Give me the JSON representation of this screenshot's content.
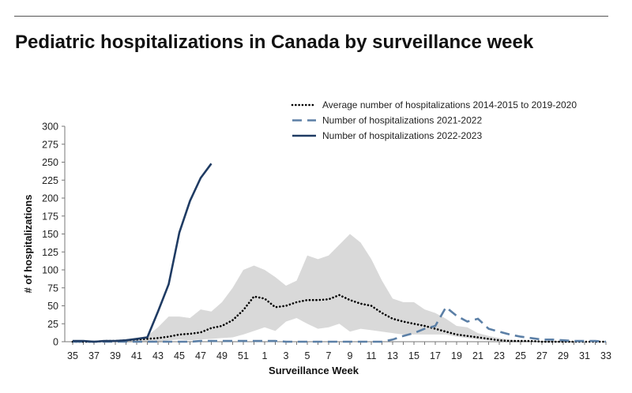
{
  "page": {
    "title": "Pediatric hospitalizations in Canada by surveillance week"
  },
  "chart_data": {
    "type": "line",
    "title": "",
    "xlabel": "Surveillance Week",
    "ylabel": "# of hospitalizations",
    "ylim": [
      0,
      300
    ],
    "yticks": [
      0,
      25,
      50,
      75,
      100,
      125,
      150,
      175,
      200,
      225,
      250,
      275,
      300
    ],
    "categories": [
      "35",
      "36",
      "37",
      "38",
      "39",
      "40",
      "41",
      "42",
      "43",
      "44",
      "45",
      "46",
      "47",
      "48",
      "49",
      "50",
      "51",
      "52",
      "1",
      "2",
      "3",
      "4",
      "5",
      "6",
      "7",
      "8",
      "9",
      "10",
      "11",
      "12",
      "13",
      "14",
      "15",
      "16",
      "17",
      "18",
      "19",
      "20",
      "21",
      "22",
      "23",
      "24",
      "25",
      "26",
      "27",
      "28",
      "29",
      "30",
      "31",
      "32",
      "33"
    ],
    "xtick_labels": [
      "35",
      "37",
      "39",
      "41",
      "43",
      "45",
      "47",
      "49",
      "51",
      "1",
      "3",
      "5",
      "7",
      "9",
      "11",
      "13",
      "15",
      "17",
      "19",
      "21",
      "23",
      "25",
      "27",
      "29",
      "31",
      "33"
    ],
    "grid": false,
    "legend_position": "top-right",
    "band": {
      "color": "#d9d9d9",
      "lower": [
        0,
        0,
        0,
        0,
        0,
        0,
        0,
        0,
        0,
        2,
        3,
        2,
        3,
        4,
        5,
        6,
        10,
        15,
        20,
        15,
        28,
        33,
        25,
        18,
        20,
        25,
        14,
        18,
        16,
        14,
        12,
        10,
        10,
        10,
        10,
        10,
        7,
        5,
        3,
        2,
        1,
        1,
        1,
        0,
        0,
        0,
        0,
        0,
        0,
        0,
        0
      ],
      "upper": [
        1,
        1,
        1,
        2,
        2,
        3,
        5,
        8,
        20,
        35,
        35,
        33,
        45,
        42,
        55,
        75,
        100,
        106,
        100,
        90,
        78,
        85,
        120,
        115,
        120,
        135,
        150,
        138,
        115,
        85,
        60,
        55,
        55,
        45,
        40,
        32,
        22,
        20,
        12,
        8,
        5,
        3,
        2,
        1,
        1,
        1,
        0,
        0,
        0,
        0,
        0
      ]
    },
    "series": [
      {
        "name": "Average number of hospitalizations 2014-2015 to 2019-2020",
        "style": "dotted",
        "color": "#000000",
        "values": [
          0,
          0,
          0,
          1,
          1,
          2,
          3,
          4,
          5,
          7,
          10,
          11,
          13,
          19,
          22,
          30,
          44,
          63,
          60,
          48,
          50,
          55,
          58,
          58,
          59,
          65,
          58,
          53,
          50,
          40,
          32,
          28,
          25,
          22,
          18,
          14,
          10,
          8,
          6,
          4,
          2,
          1,
          1,
          1,
          0,
          0,
          0,
          0,
          0,
          0,
          0
        ]
      },
      {
        "name": "Number of hospitalizations 2021-2022",
        "style": "dashed",
        "color": "#5b7fa6",
        "values": [
          0,
          0,
          0,
          0,
          0,
          0,
          0,
          0,
          0,
          0,
          0,
          0,
          1,
          1,
          1,
          1,
          1,
          1,
          1,
          1,
          0,
          0,
          0,
          0,
          0,
          0,
          0,
          0,
          0,
          0,
          3,
          8,
          12,
          18,
          22,
          48,
          36,
          28,
          32,
          18,
          14,
          10,
          7,
          5,
          3,
          3,
          2,
          1,
          1,
          1,
          0
        ]
      },
      {
        "name": "Number of hospitalizations 2022-2023",
        "style": "solid",
        "color": "#1f3b63",
        "values": [
          1,
          1,
          0,
          1,
          1,
          2,
          4,
          6,
          42,
          80,
          152,
          196,
          228,
          248,
          null,
          null,
          null,
          null,
          null,
          null,
          null,
          null,
          null,
          null,
          null,
          null,
          null,
          null,
          null,
          null,
          null,
          null,
          null,
          null,
          null,
          null,
          null,
          null,
          null,
          null,
          null,
          null,
          null,
          null,
          null,
          null,
          null,
          null,
          null,
          null,
          null
        ]
      }
    ]
  }
}
